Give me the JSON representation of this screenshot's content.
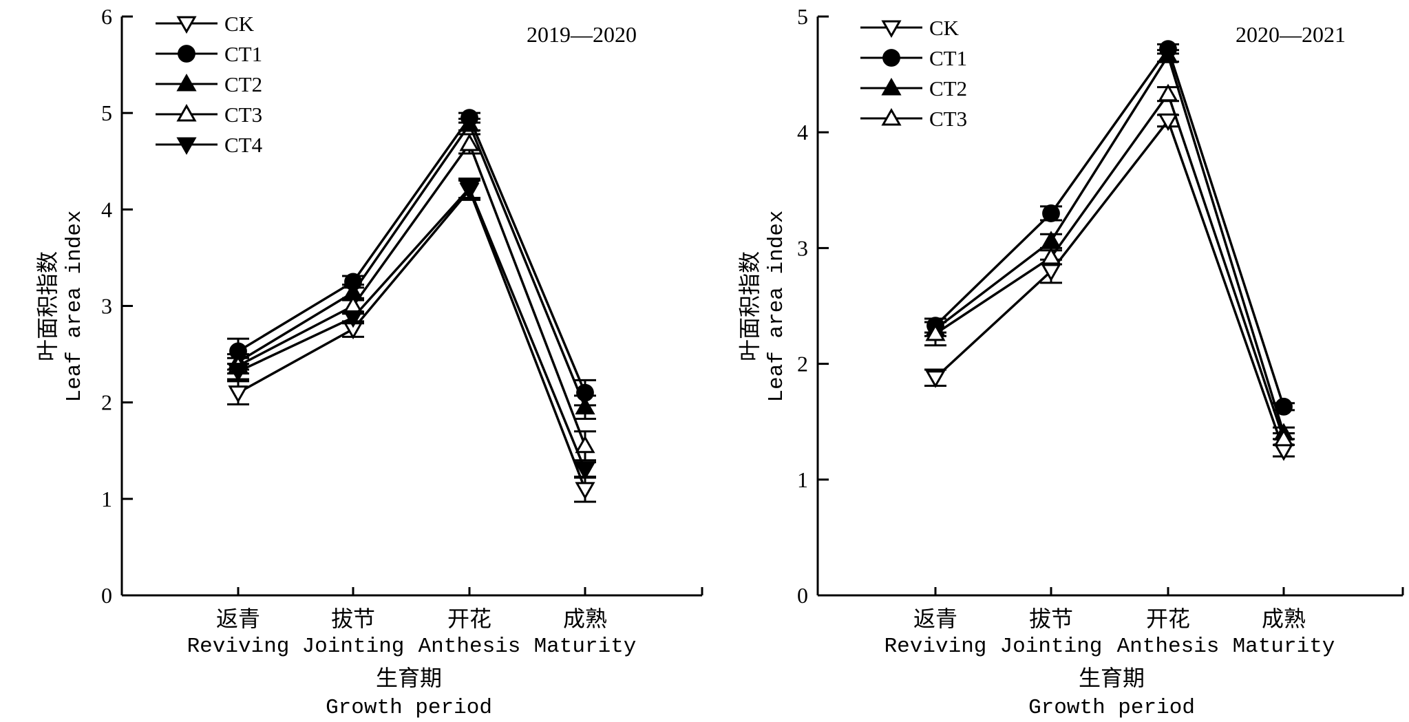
{
  "chart_data": [
    {
      "type": "line",
      "title": "2019—2020",
      "xlabel_zh": "生育期",
      "xlabel": "Growth period",
      "ylabel_zh": "叶面积指数",
      "ylabel": "Leaf area index",
      "ylim": [
        0,
        6
      ],
      "yticks": [
        "0",
        "1",
        "2",
        "3",
        "4",
        "5",
        "6"
      ],
      "categories_zh": [
        "返青",
        "拔节",
        "开花",
        "成熟"
      ],
      "categories": [
        "Reviving",
        "Jointing",
        "Anthesis",
        "Maturity"
      ],
      "legend_position": "top-left",
      "grid": false,
      "series": [
        {
          "name": "CK",
          "marker": "triangle-down-open",
          "values": [
            2.1,
            2.76,
            4.2,
            1.1
          ],
          "errors": [
            0.12,
            0.08,
            0.1,
            0.13
          ]
        },
        {
          "name": "CT1",
          "marker": "circle-filled",
          "values": [
            2.53,
            3.25,
            4.95,
            2.1
          ],
          "errors": [
            0.13,
            0.06,
            0.05,
            0.13
          ]
        },
        {
          "name": "CT2",
          "marker": "triangle-up-filled",
          "values": [
            2.42,
            3.14,
            4.88,
            1.95
          ],
          "errors": [
            0.08,
            0.08,
            0.06,
            0.12
          ]
        },
        {
          "name": "CT3",
          "marker": "triangle-up-open",
          "values": [
            2.38,
            3.0,
            4.68,
            1.55
          ],
          "errors": [
            0.08,
            0.08,
            0.1,
            0.15
          ]
        },
        {
          "name": "CT4",
          "marker": "triangle-down-filled",
          "values": [
            2.32,
            2.88,
            4.22,
            1.3
          ],
          "errors": [
            0.08,
            0.06,
            0.1,
            0.08
          ]
        }
      ]
    },
    {
      "type": "line",
      "title": "2020—2021",
      "xlabel_zh": "生育期",
      "xlabel": "Growth period",
      "ylabel_zh": "叶面积指数",
      "ylabel": "Leaf area index",
      "ylim": [
        0,
        5
      ],
      "yticks": [
        "0",
        "1",
        "2",
        "3",
        "4",
        "5"
      ],
      "categories_zh": [
        "返青",
        "拔节",
        "开花",
        "成熟"
      ],
      "categories": [
        "Reviving",
        "Jointing",
        "Anthesis",
        "Maturity"
      ],
      "legend_position": "top-left",
      "grid": false,
      "series": [
        {
          "name": "CK",
          "marker": "triangle-down-open",
          "values": [
            1.88,
            2.8,
            4.1,
            1.25
          ],
          "errors": [
            0.07,
            0.1,
            0.05,
            0.05
          ]
        },
        {
          "name": "CT1",
          "marker": "circle-filled",
          "values": [
            2.33,
            3.3,
            4.72,
            1.63
          ],
          "errors": [
            0.06,
            0.06,
            0.04,
            0.03
          ]
        },
        {
          "name": "CT2",
          "marker": "triangle-up-filled",
          "values": [
            2.3,
            3.06,
            4.66,
            1.4
          ],
          "errors": [
            0.06,
            0.06,
            0.05,
            0.05
          ]
        },
        {
          "name": "CT3",
          "marker": "triangle-up-open",
          "values": [
            2.26,
            2.92,
            4.33,
            1.35
          ],
          "errors": [
            0.1,
            0.06,
            0.06,
            0.05
          ]
        }
      ]
    }
  ]
}
